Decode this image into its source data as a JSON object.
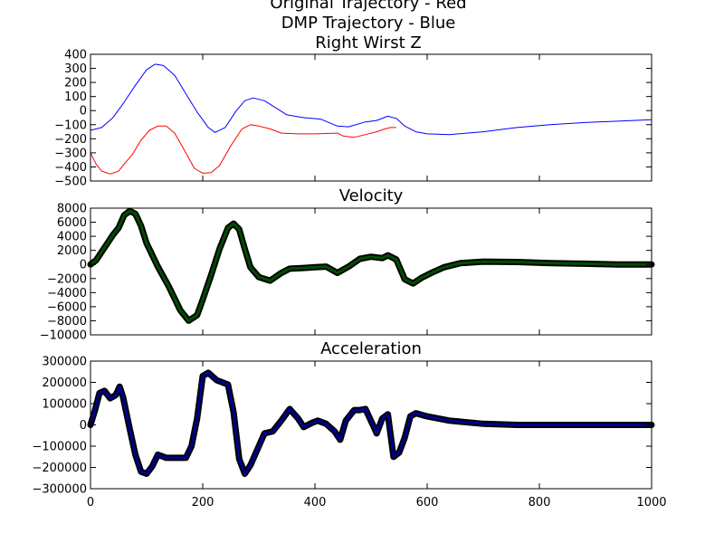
{
  "figure": {
    "title_lines": [
      "Original Trajectory - Red",
      "DMP Trajectory - Blue",
      "Right Wirst Z"
    ]
  },
  "chart_data": [
    {
      "type": "line",
      "title": "",
      "xlim": [
        0,
        1000
      ],
      "ylim": [
        -500,
        400
      ],
      "yticks": [
        400,
        300,
        200,
        100,
        0,
        -100,
        -200,
        -300,
        -400,
        -500
      ],
      "xticks": [
        0,
        200,
        400,
        600,
        800,
        1000
      ],
      "show_xtick_labels": false,
      "grid": false,
      "series": [
        {
          "color": "#0000ff",
          "points": [
            [
              0,
              -140
            ],
            [
              20,
              -120
            ],
            [
              40,
              -50
            ],
            [
              60,
              60
            ],
            [
              80,
              180
            ],
            [
              100,
              290
            ],
            [
              115,
              330
            ],
            [
              130,
              320
            ],
            [
              150,
              250
            ],
            [
              170,
              120
            ],
            [
              190,
              -10
            ],
            [
              210,
              -120
            ],
            [
              222,
              -155
            ],
            [
              240,
              -120
            ],
            [
              260,
              0
            ],
            [
              275,
              70
            ],
            [
              290,
              90
            ],
            [
              310,
              70
            ],
            [
              330,
              20
            ],
            [
              350,
              -30
            ],
            [
              380,
              -50
            ],
            [
              410,
              -60
            ],
            [
              440,
              -110
            ],
            [
              460,
              -115
            ],
            [
              490,
              -80
            ],
            [
              510,
              -70
            ],
            [
              530,
              -40
            ],
            [
              545,
              -55
            ],
            [
              560,
              -110
            ],
            [
              580,
              -150
            ],
            [
              600,
              -165
            ],
            [
              640,
              -170
            ],
            [
              700,
              -150
            ],
            [
              760,
              -120
            ],
            [
              820,
              -100
            ],
            [
              880,
              -85
            ],
            [
              940,
              -75
            ],
            [
              1000,
              -65
            ]
          ]
        },
        {
          "color": "#ff0000",
          "points": [
            [
              0,
              -300
            ],
            [
              10,
              -380
            ],
            [
              20,
              -430
            ],
            [
              35,
              -450
            ],
            [
              50,
              -430
            ],
            [
              60,
              -380
            ],
            [
              75,
              -310
            ],
            [
              90,
              -210
            ],
            [
              105,
              -140
            ],
            [
              120,
              -110
            ],
            [
              135,
              -110
            ],
            [
              150,
              -160
            ],
            [
              170,
              -300
            ],
            [
              185,
              -410
            ],
            [
              200,
              -445
            ],
            [
              215,
              -440
            ],
            [
              230,
              -390
            ],
            [
              250,
              -250
            ],
            [
              270,
              -130
            ],
            [
              285,
              -100
            ],
            [
              300,
              -110
            ],
            [
              320,
              -130
            ],
            [
              340,
              -160
            ],
            [
              370,
              -165
            ],
            [
              400,
              -165
            ],
            [
              440,
              -160
            ],
            [
              450,
              -180
            ],
            [
              470,
              -190
            ],
            [
              490,
              -170
            ],
            [
              510,
              -150
            ],
            [
              525,
              -130
            ],
            [
              535,
              -120
            ],
            [
              545,
              -120
            ]
          ]
        }
      ]
    },
    {
      "type": "line",
      "title": "Velocity",
      "xlim": [
        0,
        1000
      ],
      "ylim": [
        -10000,
        8000
      ],
      "yticks": [
        8000,
        6000,
        4000,
        2000,
        0,
        -2000,
        -4000,
        -6000,
        -8000,
        -10000
      ],
      "xticks": [
        0,
        200,
        400,
        600,
        800,
        1000
      ],
      "show_xtick_labels": false,
      "grid": false,
      "series": [
        {
          "color": "#004d00",
          "marker": "diamond",
          "points": [
            [
              0,
              0
            ],
            [
              10,
              600
            ],
            [
              20,
              1800
            ],
            [
              30,
              3000
            ],
            [
              40,
              4200
            ],
            [
              50,
              5200
            ],
            [
              60,
              7000
            ],
            [
              70,
              7600
            ],
            [
              80,
              7200
            ],
            [
              90,
              5500
            ],
            [
              100,
              3000
            ],
            [
              120,
              -300
            ],
            [
              140,
              -3200
            ],
            [
              160,
              -6500
            ],
            [
              175,
              -8000
            ],
            [
              190,
              -7200
            ],
            [
              200,
              -5000
            ],
            [
              215,
              -1500
            ],
            [
              230,
              2200
            ],
            [
              245,
              5200
            ],
            [
              255,
              5800
            ],
            [
              265,
              5000
            ],
            [
              275,
              2200
            ],
            [
              285,
              -400
            ],
            [
              300,
              -1800
            ],
            [
              320,
              -2300
            ],
            [
              340,
              -1200
            ],
            [
              355,
              -600
            ],
            [
              380,
              -500
            ],
            [
              400,
              -400
            ],
            [
              420,
              -300
            ],
            [
              440,
              -1200
            ],
            [
              460,
              -300
            ],
            [
              480,
              800
            ],
            [
              500,
              1100
            ],
            [
              520,
              900
            ],
            [
              530,
              1300
            ],
            [
              545,
              700
            ],
            [
              560,
              -2100
            ],
            [
              575,
              -2700
            ],
            [
              590,
              -1900
            ],
            [
              610,
              -1100
            ],
            [
              630,
              -400
            ],
            [
              660,
              200
            ],
            [
              700,
              400
            ],
            [
              760,
              350
            ],
            [
              820,
              200
            ],
            [
              880,
              100
            ],
            [
              940,
              0
            ],
            [
              1000,
              0
            ]
          ]
        }
      ]
    },
    {
      "type": "line",
      "title": "Acceleration",
      "xlim": [
        0,
        1000
      ],
      "ylim": [
        -300000,
        300000
      ],
      "yticks": [
        300000,
        200000,
        100000,
        0,
        -100000,
        -200000,
        -300000
      ],
      "xticks": [
        0,
        200,
        400,
        600,
        800,
        1000
      ],
      "show_xtick_labels": true,
      "grid": false,
      "series": [
        {
          "color": "#00008b",
          "marker": "star",
          "points": [
            [
              0,
              0
            ],
            [
              8,
              70000
            ],
            [
              16,
              150000
            ],
            [
              25,
              160000
            ],
            [
              35,
              125000
            ],
            [
              45,
              140000
            ],
            [
              52,
              180000
            ],
            [
              58,
              130000
            ],
            [
              70,
              -20000
            ],
            [
              80,
              -140000
            ],
            [
              90,
              -220000
            ],
            [
              100,
              -230000
            ],
            [
              110,
              -195000
            ],
            [
              120,
              -140000
            ],
            [
              135,
              -155000
            ],
            [
              160,
              -155000
            ],
            [
              170,
              -155000
            ],
            [
              180,
              -100000
            ],
            [
              190,
              30000
            ],
            [
              200,
              230000
            ],
            [
              210,
              245000
            ],
            [
              225,
              210000
            ],
            [
              245,
              190000
            ],
            [
              255,
              60000
            ],
            [
              265,
              -160000
            ],
            [
              275,
              -230000
            ],
            [
              285,
              -190000
            ],
            [
              300,
              -100000
            ],
            [
              310,
              -40000
            ],
            [
              325,
              -30000
            ],
            [
              340,
              20000
            ],
            [
              355,
              75000
            ],
            [
              370,
              30000
            ],
            [
              380,
              -10000
            ],
            [
              395,
              10000
            ],
            [
              405,
              20000
            ],
            [
              420,
              5000
            ],
            [
              435,
              -30000
            ],
            [
              445,
              -70000
            ],
            [
              455,
              20000
            ],
            [
              470,
              70000
            ],
            [
              480,
              70000
            ],
            [
              490,
              75000
            ],
            [
              505,
              -10000
            ],
            [
              510,
              -40000
            ],
            [
              520,
              30000
            ],
            [
              530,
              50000
            ],
            [
              540,
              -150000
            ],
            [
              550,
              -130000
            ],
            [
              560,
              -60000
            ],
            [
              570,
              40000
            ],
            [
              580,
              55000
            ],
            [
              600,
              40000
            ],
            [
              640,
              20000
            ],
            [
              700,
              5000
            ],
            [
              760,
              0
            ],
            [
              820,
              0
            ],
            [
              880,
              0
            ],
            [
              940,
              0
            ],
            [
              1000,
              0
            ]
          ]
        }
      ]
    }
  ]
}
